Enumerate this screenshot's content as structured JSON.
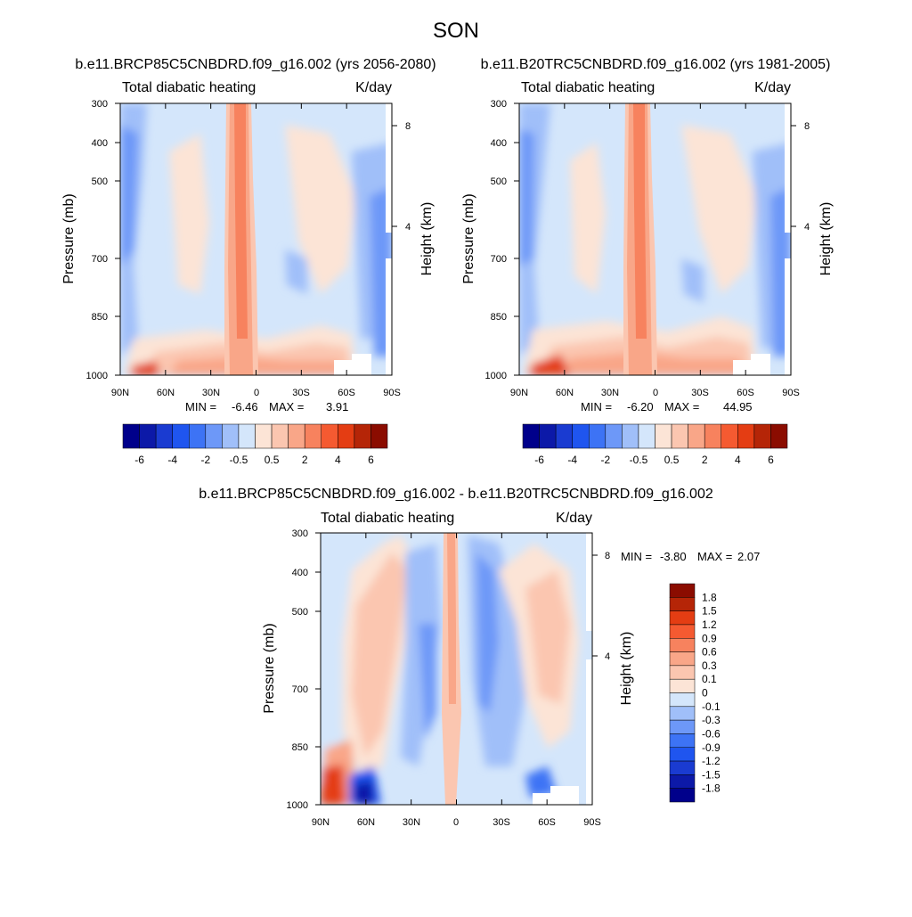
{
  "figure": {
    "title": "SON",
    "panel_subtitle_left": "Total diabatic heating",
    "panel_subtitle_right": "K/day",
    "ylabel": "Pressure (mb)",
    "ylabel_right": "Height (km)",
    "colors": {
      "neg": [
        "#00008b",
        "#0c19a8",
        "#1a3bd1",
        "#1f55ef",
        "#3d73f5",
        "#6d98f8",
        "#a0bff9",
        "#d4e6fb"
      ],
      "pos": [
        "#fce4d6",
        "#fbc6b0",
        "#f9a688",
        "#f7825e",
        "#f55a31",
        "#e43d13",
        "#b52507",
        "#8b0c00"
      ],
      "panel_cb_neg": [
        "#00008b",
        "#0c19a8",
        "#1a3bd1",
        "#1f55ef",
        "#3d73f5",
        "#6d98f8",
        "#a0bff9",
        "#d4e6fb"
      ],
      "panel_cb_pos": [
        "#fce4d6",
        "#fbc6b0",
        "#f9a688",
        "#f7825e",
        "#f55a31",
        "#e43d13",
        "#b52507",
        "#8b0c00"
      ]
    }
  },
  "chart_data": [
    {
      "type": "heatmap",
      "title": "b.e11.BRCP85C5CNBDRD.f09_g16.002 (yrs 2056-2080)",
      "subtitle_left": "Total diabatic heating",
      "subtitle_right": "K/day",
      "ylabel": "Pressure (mb)",
      "ylabel_right": "Height (km)",
      "x_ticks": [
        "90N",
        "60N",
        "30N",
        "0",
        "30S",
        "60S",
        "90S"
      ],
      "y_ticks": [
        "300",
        "400",
        "500",
        "700",
        "850",
        "1000"
      ],
      "y_ticks_right": [
        "8",
        "4"
      ],
      "min_label": "MIN =",
      "min_value": "-6.46",
      "max_label": "MAX =",
      "max_value": "3.91",
      "colorbar_labels": [
        "-6",
        "-4",
        "-2",
        "-0.5",
        "0.5",
        "2",
        "4",
        "6"
      ]
    },
    {
      "type": "heatmap",
      "title": "b.e11.B20TRC5CNBDRD.f09_g16.002 (yrs 1981-2005)",
      "subtitle_left": "Total diabatic heating",
      "subtitle_right": "K/day",
      "ylabel": "Pressure (mb)",
      "ylabel_right": "Height (km)",
      "x_ticks": [
        "90N",
        "60N",
        "30N",
        "0",
        "30S",
        "60S",
        "90S"
      ],
      "y_ticks": [
        "300",
        "400",
        "500",
        "700",
        "850",
        "1000"
      ],
      "y_ticks_right": [
        "8",
        "4"
      ],
      "min_label": "MIN =",
      "min_value": "-6.20",
      "max_label": "MAX =",
      "max_value": "44.95",
      "colorbar_labels": [
        "-6",
        "-4",
        "-2",
        "-0.5",
        "0.5",
        "2",
        "4",
        "6"
      ]
    },
    {
      "type": "heatmap",
      "title": "b.e11.BRCP85C5CNBDRD.f09_g16.002 - b.e11.B20TRC5CNBDRD.f09_g16.002",
      "subtitle_left": "Total diabatic heating",
      "subtitle_right": "K/day",
      "ylabel": "Pressure (mb)",
      "ylabel_right": "Height (km)",
      "x_ticks": [
        "90N",
        "60N",
        "30N",
        "0",
        "30S",
        "60S",
        "90S"
      ],
      "y_ticks": [
        "300",
        "400",
        "500",
        "700",
        "850",
        "1000"
      ],
      "y_ticks_right": [
        "8",
        "4"
      ],
      "min_label": "MIN =",
      "min_value": "-3.80",
      "max_label": "MAX =",
      "max_value": "2.07",
      "colorbar_labels": [
        "1.8",
        "1.5",
        "1.2",
        "0.9",
        "0.6",
        "0.3",
        "0.1",
        "0",
        "-0.1",
        "-0.3",
        "-0.6",
        "-0.9",
        "-1.2",
        "-1.5",
        "-1.8"
      ]
    }
  ]
}
